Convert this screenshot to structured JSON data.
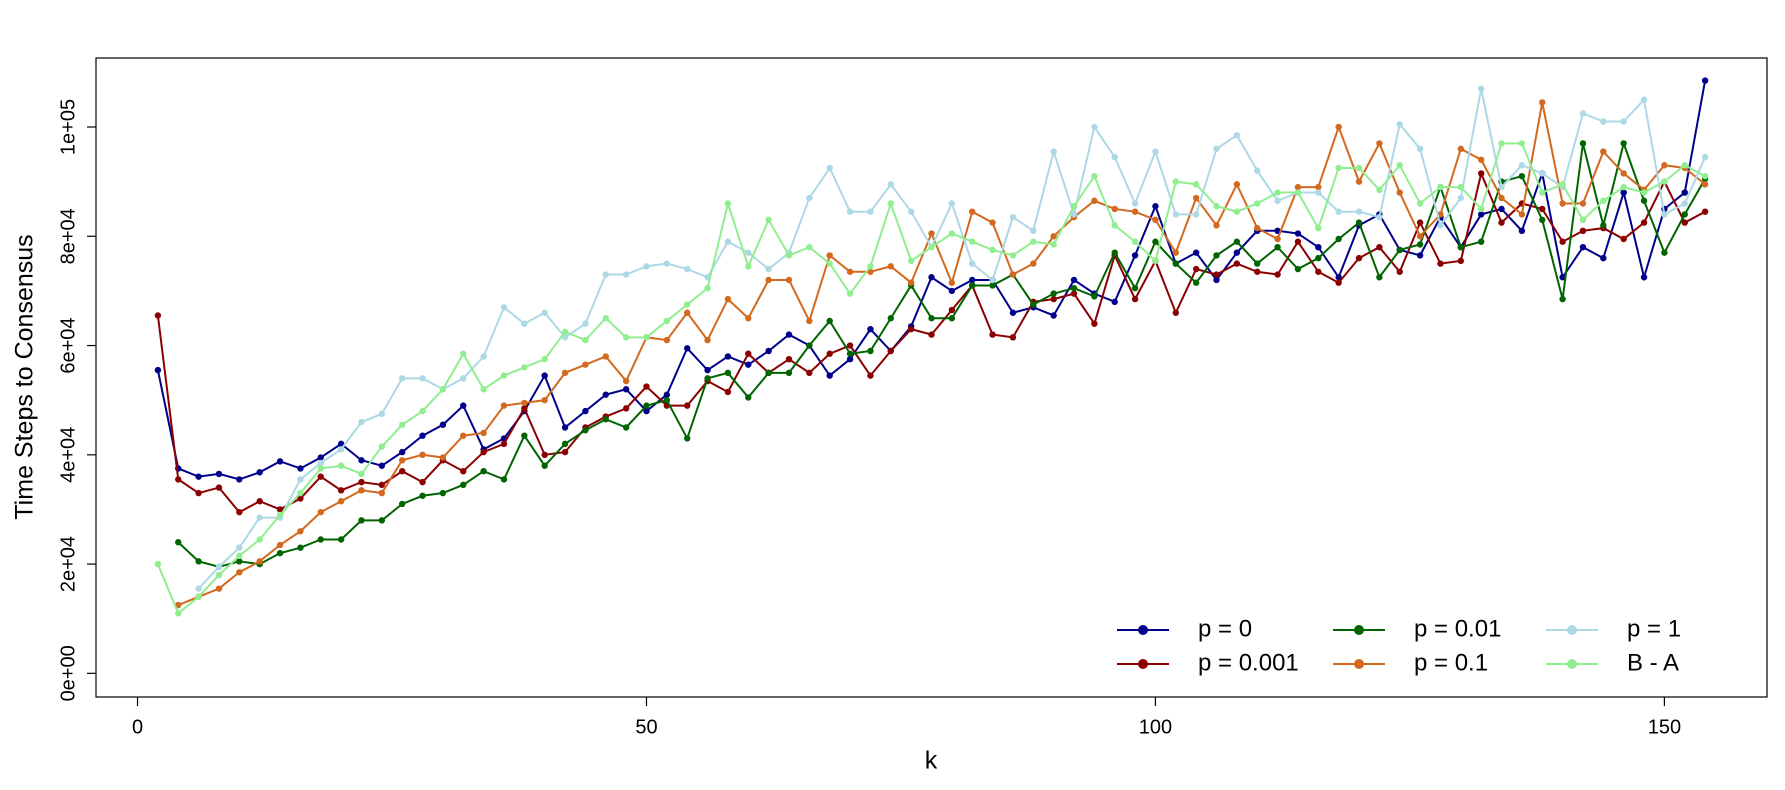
{
  "chart_data": {
    "type": "line",
    "x_label": "k",
    "y_label": "Time Steps to Consensus",
    "x": [
      2,
      4,
      6,
      8,
      10,
      12,
      14,
      16,
      18,
      20,
      22,
      24,
      26,
      28,
      30,
      32,
      34,
      36,
      38,
      40,
      42,
      44,
      46,
      48,
      50,
      52,
      54,
      56,
      58,
      60,
      62,
      64,
      66,
      68,
      70,
      72,
      74,
      76,
      78,
      80,
      82,
      84,
      86,
      88,
      90,
      92,
      94,
      96,
      98,
      100,
      102,
      104,
      106,
      108,
      110,
      112,
      114,
      116,
      118,
      120,
      122,
      124,
      126,
      128,
      130,
      132,
      134,
      136,
      138,
      140,
      142,
      144,
      146,
      148,
      150,
      152,
      154
    ],
    "series": [
      {
        "name": "p = 0",
        "color": "#00008b",
        "values": [
          55500,
          37500,
          36000,
          36500,
          35500,
          36800,
          38800,
          37500,
          39500,
          42000,
          39000,
          38000,
          40500,
          43500,
          45500,
          49000,
          41000,
          43000,
          48000,
          54500,
          45000,
          48000,
          51000,
          52000,
          48000,
          51000,
          59500,
          55500,
          58000,
          56500,
          59000,
          62000,
          60000,
          54500,
          57500,
          63000,
          59000,
          63500,
          72500,
          70000,
          72000,
          72000,
          66000,
          67000,
          65500,
          72000,
          69500,
          68000,
          76500,
          85500,
          75000,
          77000,
          72000,
          77000,
          81000,
          81000,
          80500,
          78000,
          72500,
          82000,
          84000,
          77500,
          76500,
          83500,
          78000,
          84000,
          85000,
          81000,
          91500,
          72500,
          78000,
          76000,
          88000,
          72500,
          85000,
          88000,
          108500
        ]
      },
      {
        "name": "p = 0.001",
        "color": "#8b0000",
        "values": [
          65500,
          35500,
          33000,
          34000,
          29500,
          31500,
          30000,
          32000,
          36000,
          33500,
          35000,
          34500,
          37000,
          35000,
          39000,
          37000,
          40500,
          42000,
          48500,
          40000,
          40500,
          45000,
          47000,
          48500,
          52500,
          49000,
          49000,
          53500,
          51500,
          58500,
          55000,
          57500,
          55000,
          58500,
          60000,
          54500,
          59000,
          63000,
          62000,
          66500,
          71000,
          62000,
          61500,
          68000,
          68500,
          69500,
          64000,
          76500,
          68500,
          75500,
          66000,
          74000,
          73000,
          75000,
          73500,
          73000,
          79000,
          73500,
          71500,
          76000,
          78000,
          73500,
          82500,
          75000,
          75500,
          91500,
          82500,
          86000,
          85000,
          79000,
          81000,
          81500,
          79500,
          82500,
          90000,
          82500,
          84500
        ]
      },
      {
        "name": "p = 0.01",
        "color": "#006400",
        "values": [
          null,
          24000,
          20500,
          19500,
          20500,
          20000,
          22000,
          23000,
          24500,
          24500,
          28000,
          28000,
          31000,
          32500,
          33000,
          34500,
          37000,
          35500,
          43500,
          38000,
          42000,
          44500,
          46500,
          45000,
          49000,
          50000,
          43000,
          54000,
          55000,
          50500,
          55000,
          55000,
          60000,
          64500,
          58500,
          59000,
          65000,
          71000,
          65000,
          65000,
          71000,
          71000,
          73000,
          67500,
          69500,
          70500,
          69000,
          77000,
          70500,
          79000,
          75000,
          71500,
          76500,
          79000,
          75000,
          78000,
          74000,
          76000,
          79500,
          82500,
          72500,
          77500,
          78500,
          89000,
          78000,
          79000,
          90000,
          91000,
          83000,
          68500,
          97000,
          82000,
          97000,
          86500,
          77000,
          84000,
          90500
        ]
      },
      {
        "name": "p = 0.1",
        "color": "#d2691e",
        "values": [
          null,
          12500,
          14000,
          15500,
          18500,
          20500,
          23500,
          26000,
          29500,
          31500,
          33500,
          33000,
          39000,
          40000,
          39500,
          43500,
          44000,
          49000,
          49500,
          50000,
          55000,
          56500,
          58000,
          53500,
          61500,
          61000,
          66000,
          61000,
          68500,
          65000,
          72000,
          72000,
          64500,
          76500,
          73500,
          73500,
          74500,
          71500,
          80500,
          71500,
          84500,
          82500,
          73000,
          75000,
          80000,
          83500,
          86500,
          85000,
          84500,
          83000,
          77000,
          87000,
          82000,
          89500,
          81500,
          79500,
          89000,
          89000,
          100000,
          90000,
          97000,
          88000,
          80000,
          84000,
          96000,
          94000,
          87000,
          84000,
          104500,
          86000,
          86000,
          95500,
          91500,
          88500,
          93000,
          92500,
          89500
        ]
      },
      {
        "name": "p = 1",
        "color": "#add8e6",
        "values": [
          null,
          null,
          15500,
          19500,
          23000,
          28500,
          28500,
          35500,
          38500,
          41000,
          46000,
          47500,
          54000,
          54000,
          52000,
          54000,
          58000,
          67000,
          64000,
          66000,
          61500,
          64000,
          73000,
          73000,
          74500,
          75000,
          74000,
          72500,
          79000,
          77000,
          74000,
          77000,
          87000,
          92500,
          84500,
          84500,
          89500,
          84500,
          78000,
          86000,
          75000,
          72000,
          83500,
          81000,
          95500,
          84000,
          100000,
          94500,
          86000,
          95500,
          84000,
          84000,
          96000,
          98500,
          92000,
          86500,
          88000,
          88000,
          84500,
          84500,
          83500,
          100500,
          96000,
          82000,
          87000,
          107000,
          89000,
          93000,
          91500,
          89000,
          102500,
          101000,
          101000,
          105000,
          84000,
          86000,
          94500
        ]
      },
      {
        "name": "B - A",
        "color": "#90ee90",
        "values": [
          20000,
          11000,
          14000,
          18000,
          21500,
          24500,
          29000,
          33000,
          37500,
          38000,
          36500,
          41500,
          45500,
          48000,
          52000,
          58500,
          52000,
          54500,
          56000,
          57500,
          62500,
          61000,
          65000,
          61500,
          61500,
          64500,
          67500,
          70500,
          86000,
          74500,
          83000,
          76500,
          78000,
          75000,
          69500,
          74500,
          86000,
          75500,
          78000,
          80500,
          79000,
          77500,
          76500,
          79000,
          78500,
          85500,
          91000,
          82000,
          79000,
          75500,
          90000,
          89500,
          85500,
          84500,
          86000,
          88000,
          88000,
          81500,
          92500,
          92500,
          88500,
          93000,
          86000,
          89000,
          89000,
          85000,
          97000,
          97000,
          88000,
          89500,
          83000,
          86500,
          89000,
          88000,
          90000,
          93000,
          91000
        ]
      }
    ],
    "xlim": [
      -4.08,
      160.08
    ],
    "xticks": [
      0,
      50,
      100,
      150
    ],
    "ylim": [
      -4330,
      112630
    ],
    "yticks": [
      {
        "value": 0,
        "label": "0e+00"
      },
      {
        "value": 20000,
        "label": "2e+04"
      },
      {
        "value": 40000,
        "label": "4e+04"
      },
      {
        "value": 60000,
        "label": "6e+04"
      },
      {
        "value": 80000,
        "label": "8e+04"
      },
      {
        "value": 100000,
        "label": "1e+05"
      }
    ],
    "legend": "bottomright"
  }
}
